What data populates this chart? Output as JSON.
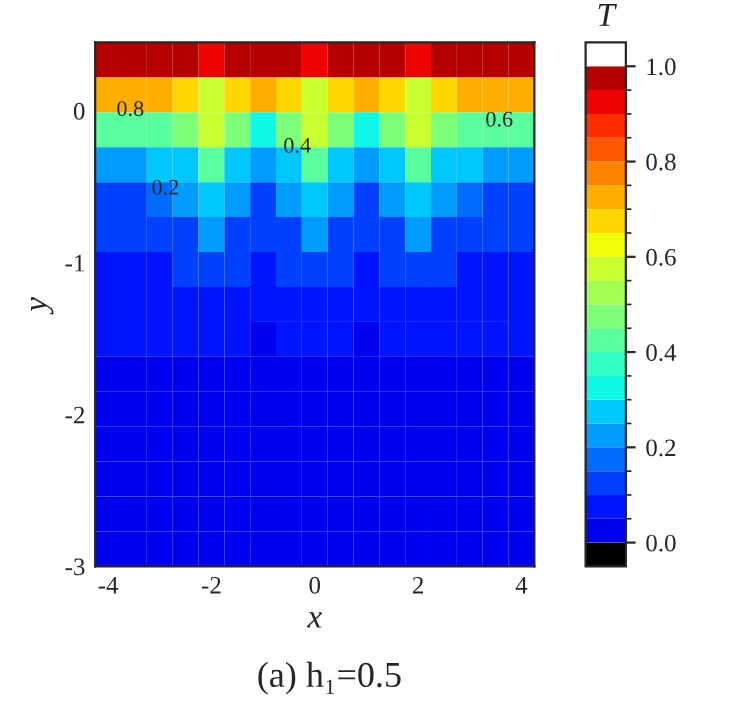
{
  "chart_data": {
    "type": "heatmap",
    "title": "(a) h₁=0.5",
    "xlabel": "x",
    "ylabel": "y",
    "clabel": "T",
    "categories": [
      "-4",
      null,
      null,
      null,
      "-2",
      null,
      null,
      null,
      "0",
      null,
      null,
      null,
      "2",
      null,
      null,
      null,
      "4"
    ],
    "ylim": [
      -3,
      0.45
    ],
    "yticks": [
      -3,
      -2,
      -1,
      0
    ],
    "cells": [
      [
        0.98,
        0.98,
        0.98,
        0.97,
        0.9,
        0.97,
        0.98,
        0.97,
        0.9,
        0.97,
        0.98,
        0.97,
        0.9,
        0.97,
        0.98,
        0.98,
        0.98
      ],
      [
        0.72,
        0.72,
        0.72,
        0.68,
        0.55,
        0.65,
        0.72,
        0.65,
        0.55,
        0.65,
        0.72,
        0.65,
        0.55,
        0.68,
        0.72,
        0.72,
        0.72
      ],
      [
        0.4,
        0.4,
        0.4,
        0.45,
        0.55,
        0.45,
        0.35,
        0.45,
        0.55,
        0.45,
        0.35,
        0.45,
        0.55,
        0.45,
        0.4,
        0.4,
        0.4
      ],
      [
        0.2,
        0.22,
        0.25,
        0.3,
        0.4,
        0.3,
        0.2,
        0.3,
        0.4,
        0.3,
        0.2,
        0.3,
        0.4,
        0.3,
        0.25,
        0.22,
        0.2
      ],
      [
        0.15,
        0.15,
        0.17,
        0.2,
        0.28,
        0.2,
        0.14,
        0.2,
        0.28,
        0.2,
        0.14,
        0.2,
        0.28,
        0.2,
        0.17,
        0.15,
        0.15
      ],
      [
        0.11,
        0.11,
        0.12,
        0.15,
        0.2,
        0.15,
        0.11,
        0.15,
        0.2,
        0.15,
        0.11,
        0.15,
        0.2,
        0.15,
        0.12,
        0.11,
        0.11
      ],
      [
        0.08,
        0.08,
        0.09,
        0.11,
        0.14,
        0.11,
        0.08,
        0.11,
        0.14,
        0.11,
        0.08,
        0.11,
        0.14,
        0.11,
        0.09,
        0.08,
        0.08
      ],
      [
        0.06,
        0.06,
        0.06,
        0.07,
        0.09,
        0.08,
        0.06,
        0.08,
        0.09,
        0.08,
        0.06,
        0.08,
        0.09,
        0.07,
        0.06,
        0.06,
        0.06
      ],
      [
        0.05,
        0.05,
        0.05,
        0.05,
        0.06,
        0.05,
        0.04,
        0.05,
        0.06,
        0.05,
        0.04,
        0.05,
        0.06,
        0.05,
        0.05,
        0.05,
        0.05
      ],
      [
        0.04,
        0.04,
        0.04,
        0.04,
        0.04,
        0.04,
        0.04,
        0.04,
        0.04,
        0.04,
        0.04,
        0.04,
        0.04,
        0.04,
        0.04,
        0.04,
        0.04
      ],
      [
        0.03,
        0.03,
        0.03,
        0.03,
        0.03,
        0.03,
        0.03,
        0.03,
        0.03,
        0.03,
        0.03,
        0.03,
        0.03,
        0.03,
        0.03,
        0.03,
        0.03
      ],
      [
        0.02,
        0.02,
        0.02,
        0.02,
        0.02,
        0.02,
        0.02,
        0.02,
        0.02,
        0.02,
        0.02,
        0.02,
        0.02,
        0.02,
        0.02,
        0.02,
        0.02
      ],
      [
        0.02,
        0.02,
        0.02,
        0.02,
        0.02,
        0.02,
        0.02,
        0.02,
        0.02,
        0.02,
        0.02,
        0.02,
        0.02,
        0.02,
        0.02,
        0.02,
        0.02
      ],
      [
        0.01,
        0.01,
        0.01,
        0.01,
        0.01,
        0.01,
        0.01,
        0.01,
        0.01,
        0.01,
        0.01,
        0.01,
        0.01,
        0.01,
        0.01,
        0.01,
        0.01
      ],
      [
        0.01,
        0.01,
        0.01,
        0.01,
        0.01,
        0.01,
        0.01,
        0.01,
        0.01,
        0.01,
        0.01,
        0.01,
        0.01,
        0.01,
        0.01,
        0.01,
        0.01
      ]
    ],
    "clim": [
      0,
      1
    ],
    "cticks": [
      {
        "value": 0,
        "label": "0.0"
      },
      {
        "value": 0.2,
        "label": "0.2"
      },
      {
        "value": 0.4,
        "label": "0.4"
      },
      {
        "value": 0.6,
        "label": "0.6"
      },
      {
        "value": 0.8,
        "label": "0.8"
      },
      {
        "value": 1,
        "label": "1.0"
      }
    ],
    "annotations": [
      "0.8",
      "0.6",
      "0.4",
      "0.2"
    ]
  }
}
